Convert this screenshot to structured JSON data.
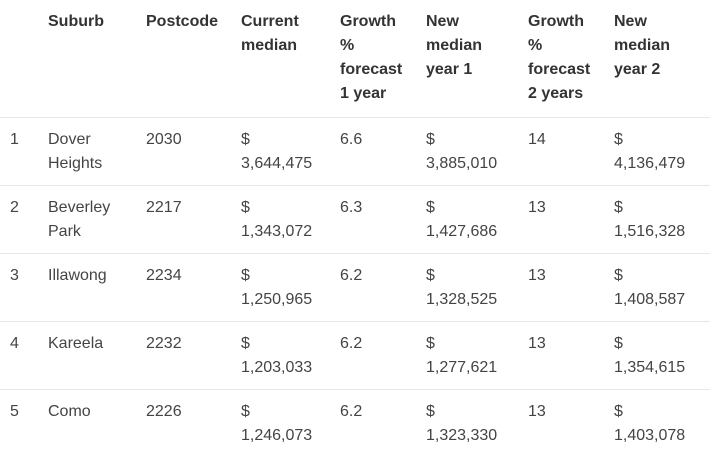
{
  "table": {
    "headers": {
      "rank": "",
      "suburb": "Suburb",
      "postcode": "Postcode",
      "current_median": "Current median",
      "growth_1y": "Growth % forecast 1 year",
      "new_median_1y": "New median year 1",
      "growth_2y": "Growth % forecast 2 years",
      "new_median_2y": "New median year 2"
    },
    "rows": [
      {
        "rank": "1",
        "suburb": "Dover Heights",
        "postcode": "2030",
        "current_currency": "$",
        "current_value": "3,644,475",
        "growth_1y": "6.6",
        "new1_currency": "$",
        "new1_value": "3,885,010",
        "growth_2y": "14",
        "new2_currency": "$",
        "new2_value": "4,136,479"
      },
      {
        "rank": "2",
        "suburb": "Beverley Park",
        "postcode": "2217",
        "current_currency": "$",
        "current_value": "1,343,072",
        "growth_1y": "6.3",
        "new1_currency": "$",
        "new1_value": "1,427,686",
        "growth_2y": "13",
        "new2_currency": "$",
        "new2_value": "1,516,328"
      },
      {
        "rank": "3",
        "suburb": "Illawong",
        "postcode": "2234",
        "current_currency": "$",
        "current_value": "1,250,965",
        "growth_1y": "6.2",
        "new1_currency": "$",
        "new1_value": "1,328,525",
        "growth_2y": "13",
        "new2_currency": "$",
        "new2_value": "1,408,587"
      },
      {
        "rank": "4",
        "suburb": "Kareela",
        "postcode": "2232",
        "current_currency": "$",
        "current_value": "1,203,033",
        "growth_1y": "6.2",
        "new1_currency": "$",
        "new1_value": "1,277,621",
        "growth_2y": "13",
        "new2_currency": "$",
        "new2_value": "1,354,615"
      },
      {
        "rank": "5",
        "suburb": "Como",
        "postcode": "2226",
        "current_currency": "$",
        "current_value": "1,246,073",
        "growth_1y": "6.2",
        "new1_currency": "$",
        "new1_value": "1,323,330",
        "growth_2y": "13",
        "new2_currency": "$",
        "new2_value": "1,403,078"
      }
    ]
  }
}
